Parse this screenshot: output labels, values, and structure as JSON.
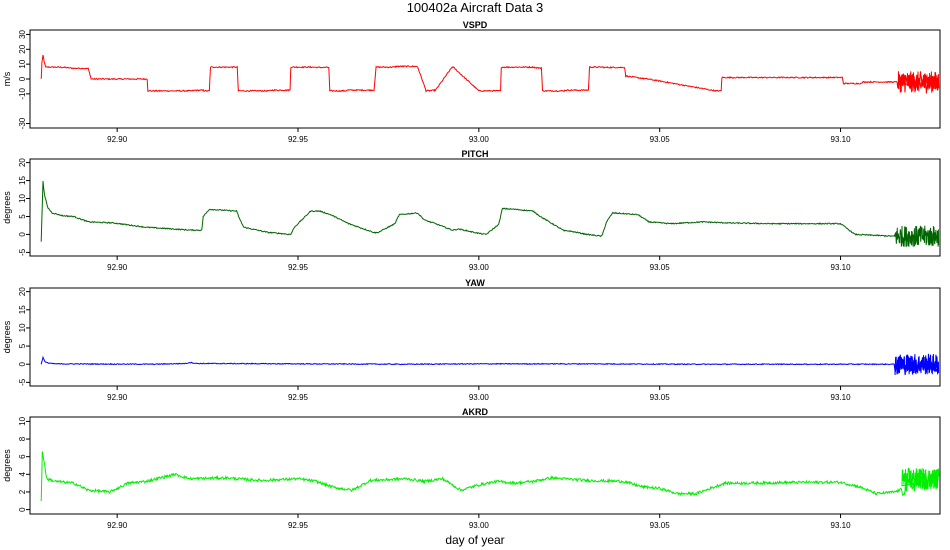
{
  "title": "100402a   Aircraft Data 3",
  "xlabel": "day of year",
  "chart_data": [
    {
      "type": "line",
      "title": "VSPD",
      "ylabel": "m/s",
      "color": "#ff0000",
      "xlim": [
        92.8759,
        93.1275
      ],
      "ylim": [
        -33,
        33
      ],
      "xticks": [
        "92.90",
        "92.95",
        "93.00",
        "93.05",
        "93.10"
      ],
      "yticks": [
        "-30",
        "-10",
        "0",
        "10",
        "20",
        "30"
      ],
      "noise": 0.4,
      "x": [
        92.879,
        92.8792,
        92.8795,
        92.8798,
        92.8802,
        92.8815,
        92.8838,
        92.8852,
        92.8858,
        92.8865,
        92.888,
        92.889,
        92.8905,
        92.892,
        92.8925,
        92.8928,
        92.9083,
        92.9085,
        92.9206,
        92.9215,
        92.9238,
        92.924,
        92.9255,
        92.9258,
        92.9298,
        92.9332,
        92.9335,
        92.942,
        92.9428,
        92.9478,
        92.948,
        92.9534,
        92.9537,
        92.956,
        92.9562,
        92.9585,
        92.9588,
        92.9632,
        92.9635,
        92.971,
        92.9716,
        92.9768,
        92.9771,
        92.9828,
        92.9831,
        92.9854,
        92.9856,
        92.9878,
        92.988,
        92.9926,
        92.9929,
        93.0,
        93.0007,
        93.006,
        93.0062,
        93.0153,
        93.0156,
        93.0173,
        93.0176,
        93.0236,
        93.0239,
        93.0303,
        93.0306,
        93.0343,
        93.0346,
        93.0403,
        93.0406,
        93.0465,
        93.0468,
        93.0655,
        93.0658,
        93.067,
        93.0672,
        93.1005,
        93.1008,
        93.1058,
        93.1062,
        93.1155,
        93.1158,
        93.127
      ],
      "y": [
        0,
        11,
        16,
        12,
        8,
        8,
        8,
        7.8,
        7.8,
        7.5,
        7.2,
        7.2,
        7.2,
        7,
        3,
        0,
        0,
        -8,
        -8,
        -7.6,
        -7.6,
        -8,
        -8,
        8,
        8,
        8,
        -8,
        -8,
        -7.5,
        -7.5,
        8,
        8,
        8,
        7.8,
        7.8,
        7.8,
        -8,
        -8,
        -7.5,
        -7.5,
        8,
        8,
        8.5,
        8.5,
        8,
        -8,
        -8,
        -7.6,
        -7.6,
        8,
        8,
        -8,
        -8,
        -8,
        8,
        8,
        7.5,
        7.5,
        -8,
        -8,
        -7.5,
        -7.5,
        8,
        8,
        7.8,
        7.8,
        2,
        0,
        0,
        -8,
        -8,
        -8,
        1,
        1,
        -3,
        -3,
        -2,
        -2,
        -2.5,
        -2
      ],
      "noisy_tail": [
        93.1158,
        93.1272
      ]
    },
    {
      "type": "line",
      "title": "PITCH",
      "ylabel": "degrees",
      "color": "#006400",
      "xlim": [
        92.8759,
        93.1275
      ],
      "ylim": [
        -6,
        21
      ],
      "xticks": [
        "92.90",
        "92.95",
        "93.00",
        "93.05",
        "93.10"
      ],
      "yticks": [
        "-5",
        "0",
        "5",
        "10",
        "15",
        "20"
      ],
      "noise": 0.15,
      "x": [
        92.879,
        92.8795,
        92.8799,
        92.8808,
        92.882,
        92.885,
        92.888,
        92.892,
        92.899,
        92.908,
        92.9205,
        92.9234,
        92.9238,
        92.9255,
        92.933,
        92.934,
        92.935,
        92.942,
        92.9428,
        92.948,
        92.949,
        92.952,
        92.9535,
        92.956,
        92.959,
        92.964,
        92.9712,
        92.972,
        92.9768,
        92.978,
        92.983,
        92.985,
        92.988,
        92.9927,
        92.9945,
        93.0,
        93.002,
        93.0055,
        93.0065,
        93.01,
        93.015,
        93.017,
        93.0236,
        93.0248,
        93.03,
        93.034,
        93.0353,
        93.037,
        93.044,
        93.047,
        93.053,
        93.062,
        93.069,
        93.08,
        93.1,
        93.104,
        93.115
      ],
      "y": [
        -2,
        15,
        11,
        7.5,
        6,
        5.2,
        5,
        3.5,
        3.2,
        2,
        1.2,
        1.2,
        5,
        7,
        6.5,
        4,
        2,
        0.5,
        0.5,
        0,
        2,
        5,
        6.5,
        6.5,
        5.5,
        3,
        0.5,
        0.5,
        3,
        5.5,
        6,
        4,
        3,
        1.2,
        1.5,
        0.3,
        0,
        2.8,
        7.2,
        7,
        6.5,
        5,
        1,
        1,
        0,
        -0.5,
        3.5,
        6,
        5.5,
        3.5,
        3,
        3.5,
        3.2,
        3,
        3,
        0,
        -0.5
      ],
      "noisy_tail": [
        93.115,
        93.1272
      ]
    },
    {
      "type": "line",
      "title": "YAW",
      "ylabel": "degrees",
      "color": "#0000ff",
      "xlim": [
        92.8759,
        93.1275
      ],
      "ylim": [
        -6,
        21
      ],
      "xticks": [
        "92.90",
        "92.95",
        "93.00",
        "93.05",
        "93.10"
      ],
      "yticks": [
        "-5",
        "0",
        "5",
        "10",
        "15",
        "20"
      ],
      "noise": 0.12,
      "x": [
        92.879,
        92.8795,
        92.88,
        92.881,
        92.883,
        92.91,
        92.919,
        92.92,
        92.922,
        92.95,
        92.98,
        93.0,
        93.03,
        93.06,
        93.09,
        93.115,
        93.127
      ],
      "y": [
        0,
        1.8,
        0.8,
        0.3,
        0.1,
        0,
        0.2,
        0.5,
        0.2,
        0.1,
        0,
        0.1,
        0.1,
        0,
        0,
        0,
        0
      ],
      "noisy_tail": [
        93.115,
        93.1272
      ]
    },
    {
      "type": "line",
      "title": "AKRD",
      "ylabel": "degrees",
      "color": "#00ee00",
      "xlim": [
        92.8759,
        93.1275
      ],
      "ylim": [
        -0.5,
        10.5
      ],
      "xticks": [
        "92.90",
        "92.95",
        "93.00",
        "93.05",
        "93.10"
      ],
      "yticks": [
        "0",
        "2",
        "4",
        "6",
        "8",
        "10"
      ],
      "noise": 0.15,
      "x": [
        92.879,
        92.8793,
        92.8798,
        92.8805,
        92.883,
        92.888,
        92.892,
        92.898,
        92.903,
        92.908,
        92.916,
        92.92,
        92.93,
        92.94,
        92.95,
        92.955,
        92.96,
        92.965,
        92.97,
        92.98,
        92.985,
        92.99,
        92.995,
        93.0,
        93.005,
        93.01,
        93.015,
        93.02,
        93.03,
        93.04,
        93.045,
        93.05,
        93.055,
        93.06,
        93.068,
        93.075,
        93.09,
        93.1,
        93.105,
        93.11,
        93.115,
        93.12,
        93.127
      ],
      "y": [
        1,
        6.6,
        5.5,
        3.5,
        3.2,
        3,
        2.2,
        2,
        3,
        3.2,
        4,
        3.5,
        3.6,
        3.3,
        3.5,
        3.2,
        2.5,
        2.2,
        3.3,
        3.5,
        3.2,
        3.5,
        2.2,
        2.8,
        3.2,
        3,
        3.2,
        3.6,
        3.3,
        3.2,
        2.6,
        2.4,
        1.8,
        1.8,
        3,
        3,
        3.1,
        3.1,
        2.6,
        1.8,
        2,
        2.8,
        3.5
      ],
      "noisy_tail": [
        93.117,
        93.1272
      ]
    }
  ]
}
